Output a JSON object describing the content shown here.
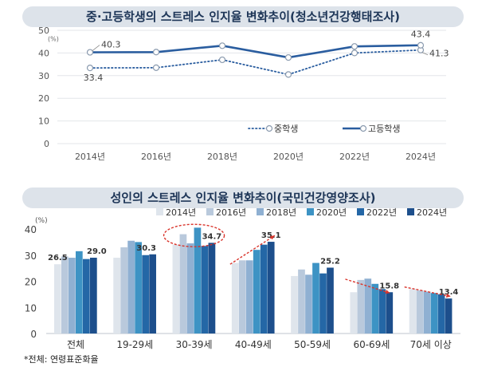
{
  "chart_data": [
    {
      "type": "line",
      "title": "중·고등학생의 스트레스 인지율 변화추이(청소년건강행태조사)",
      "ylabel": "(%)",
      "ylim": [
        0,
        50
      ],
      "yticks": [
        "0",
        "10",
        "20",
        "30",
        "40",
        "50"
      ],
      "categories": [
        "2014년",
        "2016년",
        "2018년",
        "2020년",
        "2022년",
        "2024년"
      ],
      "grid": true,
      "legend": "bottom-right",
      "series": [
        {
          "name": "중학생",
          "values": [
            33.4,
            33.5,
            37.0,
            30.5,
            40.0,
            41.3
          ],
          "color": "#2a5d9f",
          "style": "dotted",
          "labels": {
            "0": "33.4",
            "5": "41.3"
          }
        },
        {
          "name": "고등학생",
          "values": [
            40.3,
            40.4,
            43.2,
            38.0,
            42.9,
            43.4
          ],
          "color": "#2a5d9f",
          "style": "solid",
          "labels": {
            "0": "40.3",
            "5": "43.4"
          }
        }
      ]
    },
    {
      "type": "bar",
      "title": "성인의 스트레스 인지율 변화추이(국민건강영양조사)",
      "ylabel": "(%)",
      "ylim": [
        0,
        40
      ],
      "yticks": [
        "0",
        "10",
        "20",
        "30",
        "40"
      ],
      "categories": [
        "전체",
        "19-29세",
        "30-39세",
        "40-49세",
        "50-59세",
        "60-69세",
        "70세 이상"
      ],
      "legend": "top",
      "series": [
        {
          "name": "2014년",
          "color": "#dfe5ec",
          "values": [
            26.5,
            29.0,
            34.0,
            27.0,
            22.0,
            15.8,
            17.0
          ]
        },
        {
          "name": "2016년",
          "color": "#b9c9dc",
          "values": [
            29.5,
            33.0,
            38.0,
            28.0,
            24.5,
            20.5,
            16.5
          ]
        },
        {
          "name": "2018년",
          "color": "#8fb0d2",
          "values": [
            29.0,
            35.5,
            34.5,
            28.0,
            22.5,
            21.0,
            16.0
          ]
        },
        {
          "name": "2020년",
          "color": "#3d93c4",
          "values": [
            31.5,
            35.0,
            40.5,
            32.0,
            27.0,
            19.0,
            15.5
          ]
        },
        {
          "name": "2022년",
          "color": "#2467a6",
          "values": [
            28.5,
            30.0,
            33.5,
            34.0,
            23.0,
            17.0,
            15.0
          ]
        },
        {
          "name": "2024년",
          "color": "#1d4f8c",
          "values": [
            29.0,
            30.3,
            34.7,
            35.1,
            25.2,
            15.8,
            13.4
          ]
        }
      ],
      "data_labels": [
        {
          "category": 0,
          "series": 0,
          "text": "26.5"
        },
        {
          "category": 0,
          "series": 5,
          "text": "29.0"
        },
        {
          "category": 1,
          "series": 5,
          "text": "30.3"
        },
        {
          "category": 2,
          "series": 5,
          "text": "34.7"
        },
        {
          "category": 3,
          "series": 5,
          "text": "35.1"
        },
        {
          "category": 4,
          "series": 5,
          "text": "25.2"
        },
        {
          "category": 5,
          "series": 5,
          "text": "15.8"
        },
        {
          "category": 6,
          "series": 5,
          "text": "13.4"
        }
      ]
    }
  ],
  "footnote": "*전체: 연령표준화율"
}
